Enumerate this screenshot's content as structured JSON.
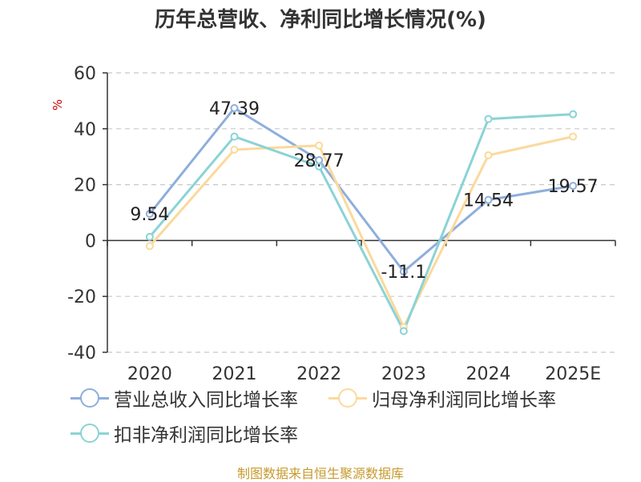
{
  "title": "历年总营收、净利同比增长情况(%)",
  "source": "制图数据来自恒生聚源数据库",
  "chart_data": {
    "type": "line",
    "title": "历年总营收、净利同比增长情况(%)",
    "ylabel": "%",
    "ylim": [
      -40,
      60
    ],
    "yticks": [
      "60",
      "40",
      "20",
      "0",
      "-20",
      "-40"
    ],
    "categories": [
      "2020",
      "2021",
      "2022",
      "2023",
      "2024",
      "2025E"
    ],
    "grid": true,
    "legend_position": "bottom-left",
    "series": [
      {
        "name": "营业总收入同比增长率",
        "color": "#8eaedc",
        "values": [
          9.54,
          47.39,
          28.77,
          -11.1,
          14.54,
          19.57
        ],
        "labels": [
          "9.54",
          "47.39",
          "28.77",
          "-11.1",
          "14.54",
          "19.57"
        ]
      },
      {
        "name": "归母净利润同比增长率",
        "color": "#fbd99c",
        "values": [
          -2,
          32.5,
          34,
          -31,
          30.5,
          37.2
        ]
      },
      {
        "name": "扣非净利润同比增长率",
        "color": "#8bd3d5",
        "values": [
          1.3,
          37.2,
          26.5,
          -32.4,
          43.5,
          45.2
        ]
      }
    ]
  }
}
